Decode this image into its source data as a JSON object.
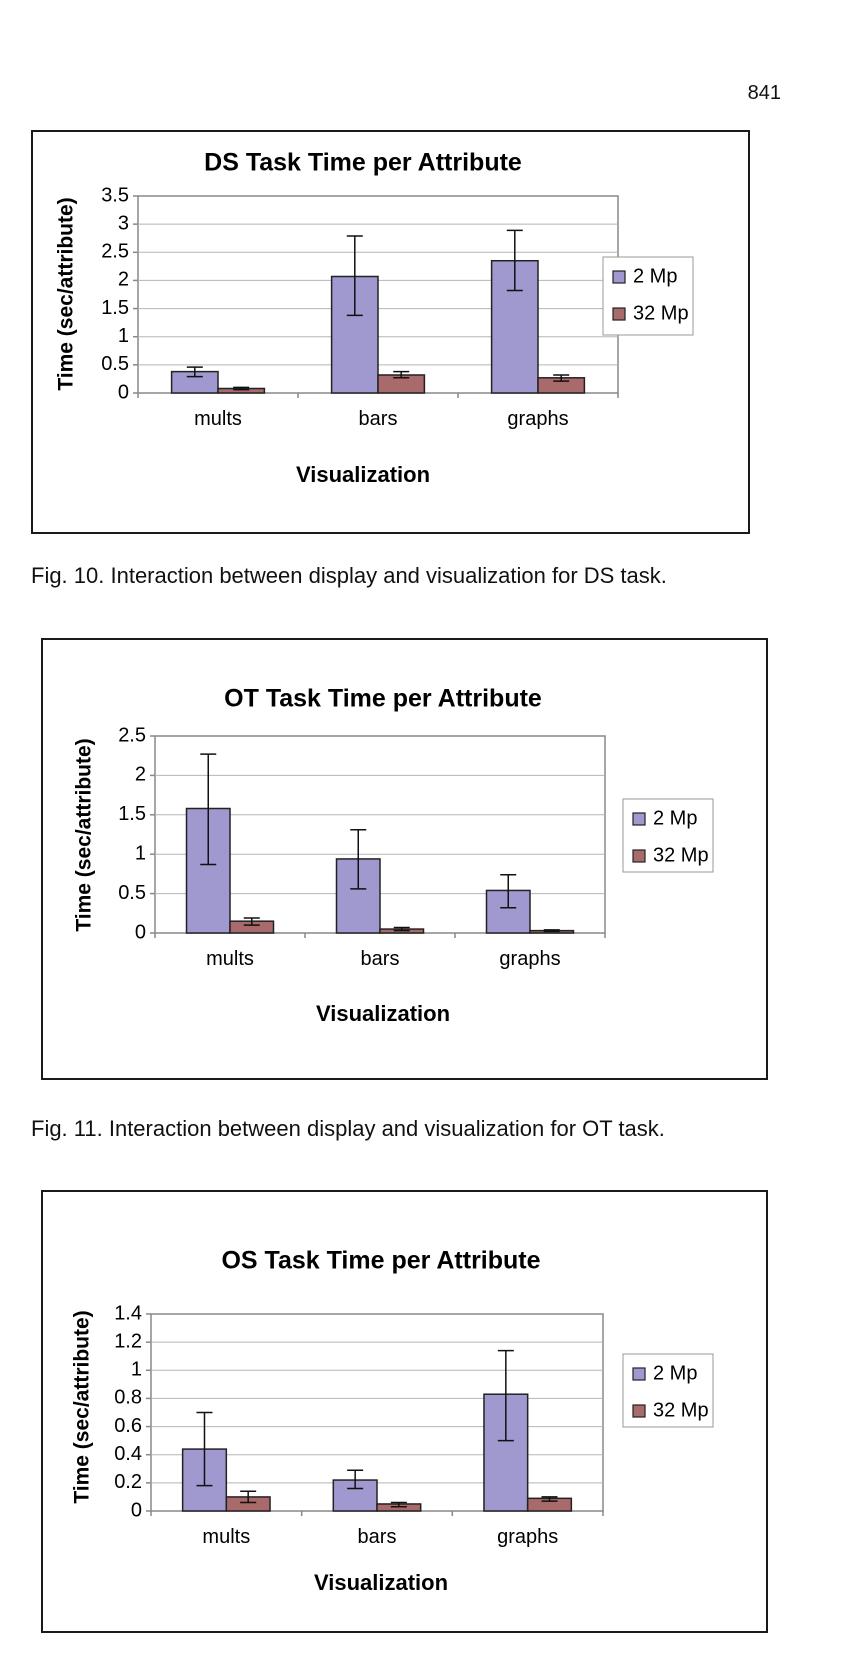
{
  "page_number": "841",
  "colors": {
    "series_2mp": "#9f99cf",
    "series_32mp": "#a86a6a",
    "grid": "#b5b5b5",
    "axis": "#888888"
  },
  "chart_data": [
    {
      "type": "bar",
      "title": "DS Task Time per Attribute",
      "xlabel": "Visualization",
      "ylabel": "Time (sec/attribute)",
      "categories": [
        "mults",
        "bars",
        "graphs"
      ],
      "ylim": [
        0,
        3.5
      ],
      "yticks": [
        "0",
        "0.5",
        "1",
        "1.5",
        "2",
        "2.5",
        "3",
        "3.5"
      ],
      "tick_values": [
        0,
        0.5,
        1,
        1.5,
        2,
        2.5,
        3,
        3.5
      ],
      "grid": true,
      "legend": "right",
      "series": [
        {
          "name": "2 Mp",
          "values": [
            0.38,
            2.07,
            2.35
          ],
          "err_low": [
            0.29,
            1.38,
            1.82
          ],
          "err_high": [
            0.46,
            2.79,
            2.89
          ]
        },
        {
          "name": "32 Mp",
          "values": [
            0.08,
            0.32,
            0.27
          ],
          "err_low": [
            0.06,
            0.27,
            0.21
          ],
          "err_high": [
            0.1,
            0.38,
            0.32
          ]
        }
      ],
      "caption": "Fig. 10. Interaction between display and visualization for DS task."
    },
    {
      "type": "bar",
      "title": "OT Task Time per Attribute",
      "xlabel": "Visualization",
      "ylabel": "Time (sec/attribute)",
      "categories": [
        "mults",
        "bars",
        "graphs"
      ],
      "ylim": [
        0,
        2.5
      ],
      "yticks": [
        "0",
        "0.5",
        "1",
        "1.5",
        "2",
        "2.5"
      ],
      "tick_values": [
        0,
        0.5,
        1,
        1.5,
        2,
        2.5
      ],
      "grid": true,
      "legend": "right",
      "series": [
        {
          "name": "2 Mp",
          "values": [
            1.58,
            0.94,
            0.54
          ],
          "err_low": [
            0.87,
            0.56,
            0.32
          ],
          "err_high": [
            2.27,
            1.31,
            0.74
          ]
        },
        {
          "name": "32 Mp",
          "values": [
            0.15,
            0.05,
            0.03
          ],
          "err_low": [
            0.1,
            0.03,
            0.02
          ],
          "err_high": [
            0.19,
            0.07,
            0.04
          ]
        }
      ],
      "caption": "Fig. 11. Interaction between display and visualization for OT task."
    },
    {
      "type": "bar",
      "title": "OS Task Time per Attribute",
      "xlabel": "Visualization",
      "ylabel": "Time (sec/attribute)",
      "categories": [
        "mults",
        "bars",
        "graphs"
      ],
      "ylim": [
        0,
        1.4
      ],
      "yticks": [
        "0",
        "0.2",
        "0.4",
        "0.6",
        "0.8",
        "1",
        "1.2",
        "1.4"
      ],
      "tick_values": [
        0,
        0.2,
        0.4,
        0.6,
        0.8,
        1,
        1.2,
        1.4
      ],
      "grid": true,
      "legend": "right",
      "series": [
        {
          "name": "2 Mp",
          "values": [
            0.44,
            0.22,
            0.83
          ],
          "err_low": [
            0.18,
            0.16,
            0.5
          ],
          "err_high": [
            0.7,
            0.29,
            1.14
          ]
        },
        {
          "name": "32 Mp",
          "values": [
            0.1,
            0.05,
            0.09
          ],
          "err_low": [
            0.06,
            0.03,
            0.07
          ],
          "err_high": [
            0.14,
            0.06,
            0.1
          ]
        }
      ]
    }
  ]
}
